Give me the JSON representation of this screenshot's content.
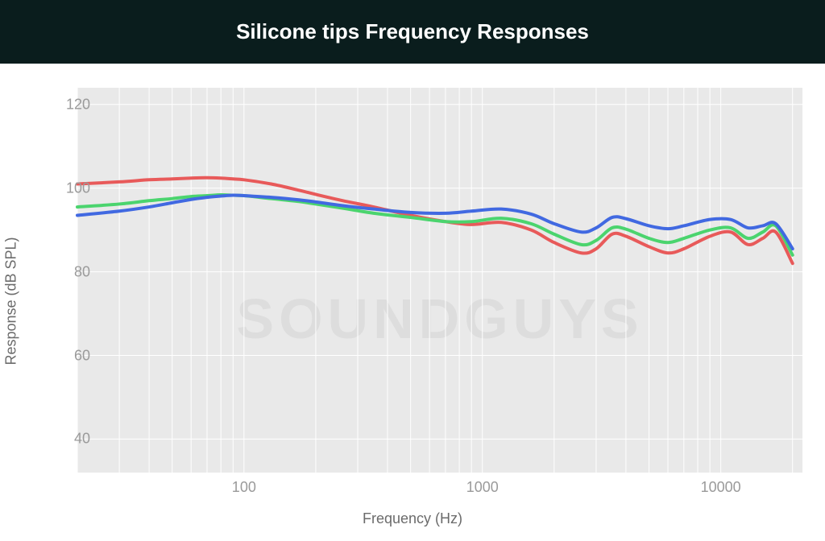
{
  "header": {
    "title": "Silicone tips Frequency Responses",
    "bg_color": "#0a1d1d",
    "text_color": "#ffffff",
    "fontsize": 26,
    "fontweight": 700
  },
  "chart": {
    "type": "line",
    "background_color": "#e9e9e9",
    "grid_color": "#ffffff",
    "axis_text_color": "#9a9a9a",
    "label_color": "#6b6b6b",
    "label_fontsize": 18,
    "tick_fontsize": 18,
    "line_width": 4,
    "xscale": "log",
    "yscale": "linear",
    "xlabel": "Frequency (Hz)",
    "ylabel": "Response (dB SPL)",
    "xlim": [
      20,
      22000
    ],
    "ylim": [
      32,
      124
    ],
    "yticks": [
      40,
      60,
      80,
      100,
      120
    ],
    "xticks_major": [
      100,
      1000,
      10000
    ],
    "xticks_minor": [
      20,
      30,
      40,
      50,
      60,
      70,
      80,
      90,
      200,
      300,
      400,
      500,
      600,
      700,
      800,
      900,
      2000,
      3000,
      4000,
      5000,
      6000,
      7000,
      8000,
      9000,
      20000
    ],
    "watermark": "SOUNDGUYS",
    "series": [
      {
        "name": "red",
        "color": "#e85a5a",
        "x": [
          20,
          30,
          40,
          50,
          60,
          70,
          80,
          90,
          100,
          130,
          170,
          200,
          260,
          350,
          500,
          700,
          900,
          1200,
          1600,
          2000,
          2600,
          3000,
          3500,
          4000,
          5000,
          6000,
          7000,
          9000,
          11000,
          13000,
          15000,
          17000,
          20000
        ],
        "y": [
          101,
          101.5,
          102,
          102.2,
          102.4,
          102.5,
          102.4,
          102.2,
          102,
          101,
          99.5,
          98.5,
          97,
          95.5,
          93.5,
          92,
          91.3,
          91.8,
          90,
          87,
          84.5,
          85.5,
          89,
          88.5,
          86,
          84.5,
          85.5,
          88.5,
          89.5,
          86.5,
          88,
          89.5,
          82
        ]
      },
      {
        "name": "green",
        "color": "#4bd46e",
        "x": [
          20,
          30,
          40,
          50,
          60,
          70,
          80,
          90,
          100,
          130,
          170,
          200,
          260,
          350,
          500,
          700,
          900,
          1200,
          1600,
          2000,
          2600,
          3000,
          3500,
          4000,
          5000,
          6000,
          7000,
          9000,
          11000,
          13000,
          15000,
          17000,
          20000
        ],
        "y": [
          95.5,
          96.2,
          97,
          97.5,
          98,
          98.2,
          98.4,
          98.3,
          98.2,
          97.5,
          96.8,
          96.2,
          95.2,
          94,
          93,
          92,
          92,
          92.8,
          91.5,
          89,
          86.5,
          87.5,
          90.5,
          90.2,
          88,
          87,
          88,
          90,
          90.5,
          88,
          89.5,
          91,
          84
        ]
      },
      {
        "name": "blue",
        "color": "#4169e1",
        "x": [
          20,
          30,
          40,
          50,
          60,
          70,
          80,
          90,
          100,
          130,
          170,
          200,
          260,
          350,
          500,
          700,
          900,
          1200,
          1600,
          2000,
          2600,
          3000,
          3500,
          4000,
          5000,
          6000,
          7000,
          9000,
          11000,
          13000,
          15000,
          17000,
          20000
        ],
        "y": [
          93.5,
          94.5,
          95.5,
          96.5,
          97.3,
          97.8,
          98.1,
          98.3,
          98.2,
          97.8,
          97.2,
          96.7,
          95.8,
          95,
          94.2,
          94,
          94.5,
          95,
          93.8,
          91.5,
          89.5,
          90.5,
          93,
          92.7,
          91,
          90.3,
          91,
          92.5,
          92.5,
          90.5,
          91,
          91.5,
          85.5
        ]
      }
    ]
  }
}
